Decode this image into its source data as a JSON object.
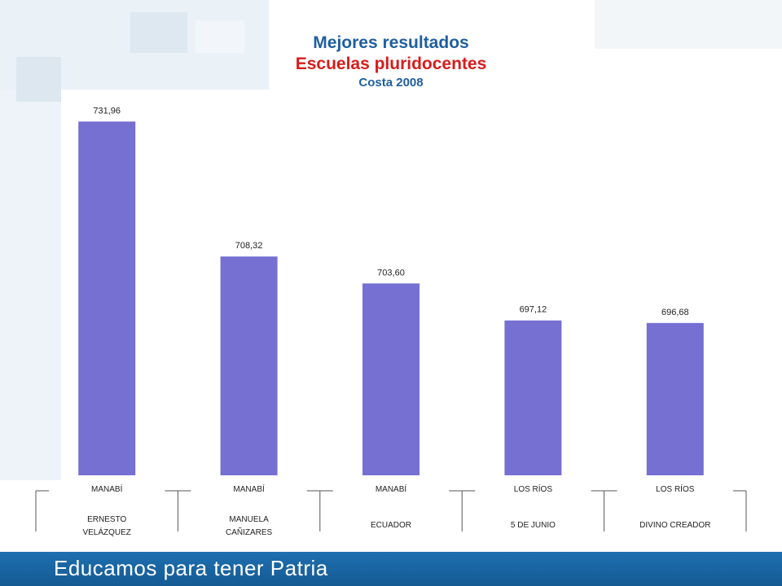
{
  "title": {
    "line1": "Mejores resultados",
    "line2": "Escuelas pluridocentes",
    "line3": "Costa 2008"
  },
  "footer": {
    "slogan": "Educamos para tener Patria"
  },
  "colors": {
    "bar": "#7570d2",
    "title_blue": "#1f5f9f",
    "title_red": "#d61c1c",
    "footer": "#1e6fb0"
  },
  "chart_data": {
    "type": "bar",
    "categories": [
      {
        "province": "MANABÍ",
        "school": "ERNESTO VELÁZQUEZ"
      },
      {
        "province": "MANABÍ",
        "school": "MANUELA CAÑIZARES"
      },
      {
        "province": "MANABÍ",
        "school": "ECUADOR"
      },
      {
        "province": "LOS RÍOS",
        "school": "5 DE JUNIO"
      },
      {
        "province": "LOS RÍOS",
        "school": "DIVINO CREADOR"
      }
    ],
    "values": [
      731.96,
      708.32,
      703.6,
      697.12,
      696.68
    ],
    "value_labels": [
      "731,96",
      "708,32",
      "703,60",
      "697,12",
      "696,68"
    ],
    "title": "Mejores resultados",
    "xlabel": "",
    "ylabel": "",
    "ylim": [
      670,
      735
    ],
    "grid": false,
    "legend": "none"
  }
}
